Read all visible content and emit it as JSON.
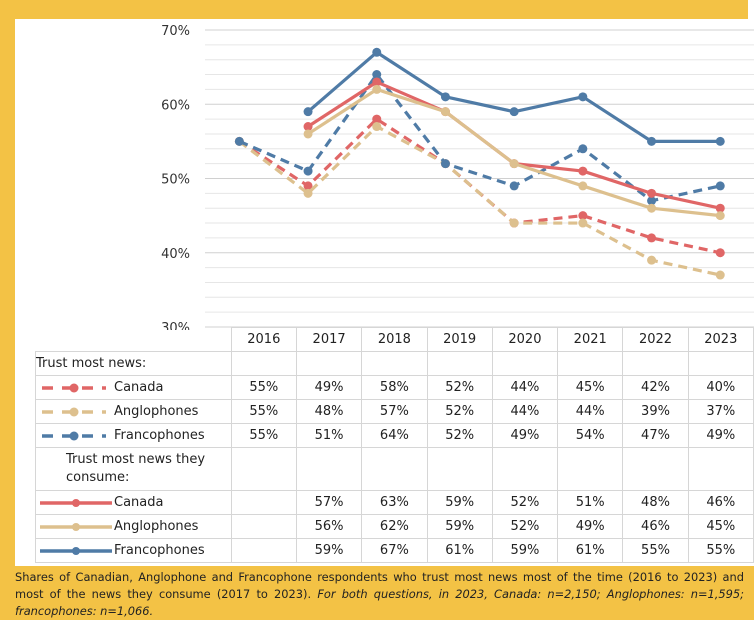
{
  "chart_data": {
    "type": "line",
    "categories": [
      "2016",
      "2017",
      "2018",
      "2019",
      "2020",
      "2021",
      "2022",
      "2023"
    ],
    "ylim": [
      30,
      70
    ],
    "yticks": [
      "30%",
      "40%",
      "50%",
      "60%",
      "70%"
    ],
    "grid": true,
    "legend": "data table below chart",
    "groups": [
      {
        "title": "Trust most news:",
        "style": "dashed",
        "series": [
          {
            "name": "Canada",
            "color": "#E06666",
            "values": [
              55,
              49,
              58,
              52,
              44,
              45,
              42,
              40
            ]
          },
          {
            "name": "Anglophones",
            "color": "#DDC08E",
            "values": [
              55,
              48,
              57,
              52,
              44,
              44,
              39,
              37
            ]
          },
          {
            "name": "Francophones",
            "color": "#4F7BA6",
            "values": [
              55,
              51,
              64,
              52,
              49,
              54,
              47,
              49
            ]
          }
        ]
      },
      {
        "title": "Trust most news they consume:",
        "style": "solid",
        "series": [
          {
            "name": "Canada",
            "color": "#E06666",
            "values": [
              null,
              57,
              63,
              59,
              52,
              51,
              48,
              46
            ]
          },
          {
            "name": "Anglophones",
            "color": "#DDC08E",
            "values": [
              null,
              56,
              62,
              59,
              52,
              49,
              46,
              45
            ]
          },
          {
            "name": "Francophones",
            "color": "#4F7BA6",
            "values": [
              null,
              59,
              67,
              61,
              59,
              61,
              55,
              55
            ]
          }
        ]
      }
    ]
  },
  "caption": {
    "text": "Shares of Canadian, Anglophone and Francophone respondents who trust most news most of the time (2016 to 2023) and most of the news they consume (2017 to 2023).",
    "italic": "For both questions, in 2023, Canada: n=2,150; Anglophones: n=1,595; francophones: n=1,066."
  },
  "frame_color": "#F3C245"
}
